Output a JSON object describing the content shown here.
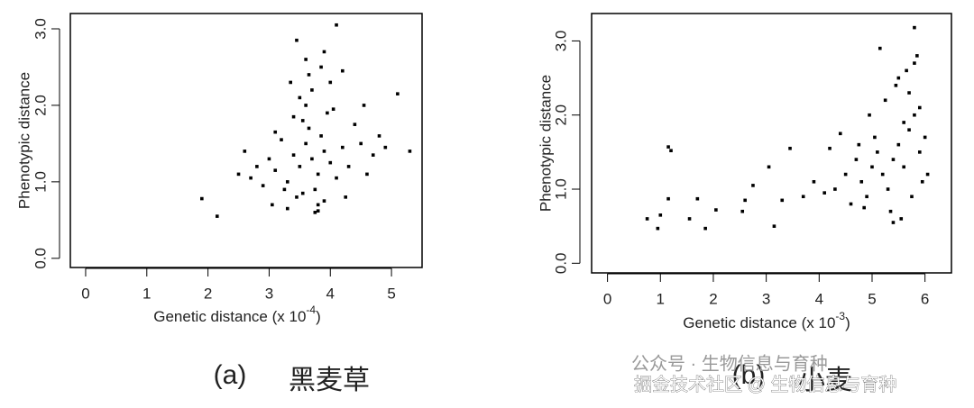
{
  "chart_data": [
    {
      "type": "scatter",
      "xlabel": "Genetic distance (x 10",
      "xlabel_exponent": "-4",
      "xlabel_end": ")",
      "ylabel": "Phenotypic distance",
      "color": "#000000",
      "xlim": [
        -0.25,
        5.5
      ],
      "ylim": [
        -0.12,
        3.2
      ],
      "xticks": [
        0,
        1,
        2,
        3,
        4,
        5
      ],
      "yticks": [
        {
          "value": 0,
          "label": "0.0"
        },
        {
          "value": 1,
          "label": "1.0"
        },
        {
          "value": 2,
          "label": "2.0"
        },
        {
          "value": 3,
          "label": "3.0"
        }
      ],
      "x": [
        3.7,
        3.5,
        3.9,
        3.6,
        3.8,
        3.4,
        4.0,
        3.3,
        4.2,
        3.1,
        3.65,
        3.75,
        3.55,
        3.85,
        3.45,
        3.95,
        4.1,
        3.2,
        4.3,
        3.0,
        2.9,
        4.5,
        4.6,
        2.8,
        3.6,
        3.7,
        3.8,
        3.5,
        3.9,
        3.4,
        4.0,
        3.3,
        4.4,
        3.1,
        4.7,
        2.7,
        2.6,
        4.8,
        3.65,
        3.75,
        3.55,
        3.85,
        4.05,
        3.25,
        4.25,
        3.05,
        4.9,
        2.5,
        3.6,
        3.9,
        1.9,
        2.15,
        4.1,
        3.45,
        5.3,
        5.1,
        4.2,
        3.8,
        3.35,
        4.55
      ],
      "y": [
        1.3,
        1.2,
        1.4,
        1.5,
        1.1,
        1.35,
        1.25,
        1.0,
        1.45,
        1.15,
        1.7,
        0.9,
        1.8,
        1.6,
        0.8,
        1.9,
        1.05,
        1.55,
        1.2,
        1.3,
        0.95,
        1.5,
        1.1,
        1.2,
        2.0,
        2.2,
        0.7,
        2.1,
        0.75,
        1.85,
        2.3,
        0.65,
        1.75,
        1.65,
        1.35,
        1.05,
        1.4,
        1.6,
        2.4,
        0.6,
        0.85,
        2.5,
        1.95,
        0.9,
        0.8,
        0.7,
        1.45,
        1.1,
        2.6,
        2.7,
        0.78,
        0.55,
        3.05,
        2.85,
        1.4,
        2.15,
        2.45,
        0.62,
        2.3,
        2.0
      ]
    },
    {
      "type": "scatter",
      "xlabel": "Genetic distance (x 10",
      "xlabel_exponent": "-3",
      "xlabel_end": ")",
      "ylabel": "Phenotypic distance",
      "color": "#000000",
      "xlim": [
        -0.3,
        6.5
      ],
      "ylim": [
        -0.13,
        3.37
      ],
      "xticks": [
        0,
        1,
        2,
        3,
        4,
        5,
        6
      ],
      "yticks": [
        {
          "value": 0,
          "label": "0.0"
        },
        {
          "value": 1,
          "label": "1.0"
        },
        {
          "value": 2,
          "label": "2.0"
        },
        {
          "value": 3,
          "label": "3.0"
        }
      ],
      "x": [
        0.75,
        0.95,
        1.0,
        1.15,
        1.2,
        1.15,
        1.7,
        1.85,
        2.05,
        1.55,
        2.6,
        2.55,
        2.75,
        3.05,
        3.15,
        3.3,
        3.45,
        5.8,
        3.7,
        3.9,
        4.1,
        4.3,
        4.5,
        4.6,
        4.7,
        4.8,
        4.9,
        5.0,
        5.1,
        5.2,
        5.3,
        5.4,
        5.5,
        5.6,
        5.7,
        5.8,
        5.9,
        6.0,
        5.25,
        5.45,
        5.65,
        5.85,
        5.95,
        5.35,
        5.55,
        5.75,
        5.05,
        4.95,
        4.85,
        4.75,
        5.15,
        5.5,
        5.7,
        5.9,
        5.6,
        5.4,
        4.4,
        4.2,
        6.05,
        5.8
      ],
      "y": [
        0.6,
        0.47,
        0.65,
        1.57,
        1.52,
        0.87,
        0.87,
        0.47,
        0.72,
        0.6,
        0.85,
        0.7,
        1.05,
        1.3,
        0.5,
        0.85,
        1.55,
        3.18,
        0.9,
        1.1,
        0.95,
        1.0,
        1.2,
        0.8,
        1.4,
        1.1,
        0.9,
        1.3,
        1.5,
        1.2,
        1.0,
        1.4,
        1.6,
        1.3,
        1.8,
        2.0,
        1.5,
        1.7,
        2.2,
        2.4,
        2.6,
        2.8,
        1.1,
        0.7,
        0.6,
        0.9,
        1.7,
        2.0,
        0.75,
        1.6,
        2.9,
        2.5,
        2.3,
        2.1,
        1.9,
        0.55,
        1.75,
        1.55,
        1.2,
        2.7
      ]
    }
  ],
  "captions": [
    {
      "label": "(a)",
      "name": "黑麦草"
    },
    {
      "label": "(b)",
      "name": "小麦"
    }
  ],
  "watermark": {
    "line1": "公众号 · 生物信息与育种",
    "line2": "掘金技术社区 @ 生物信息与育种"
  }
}
